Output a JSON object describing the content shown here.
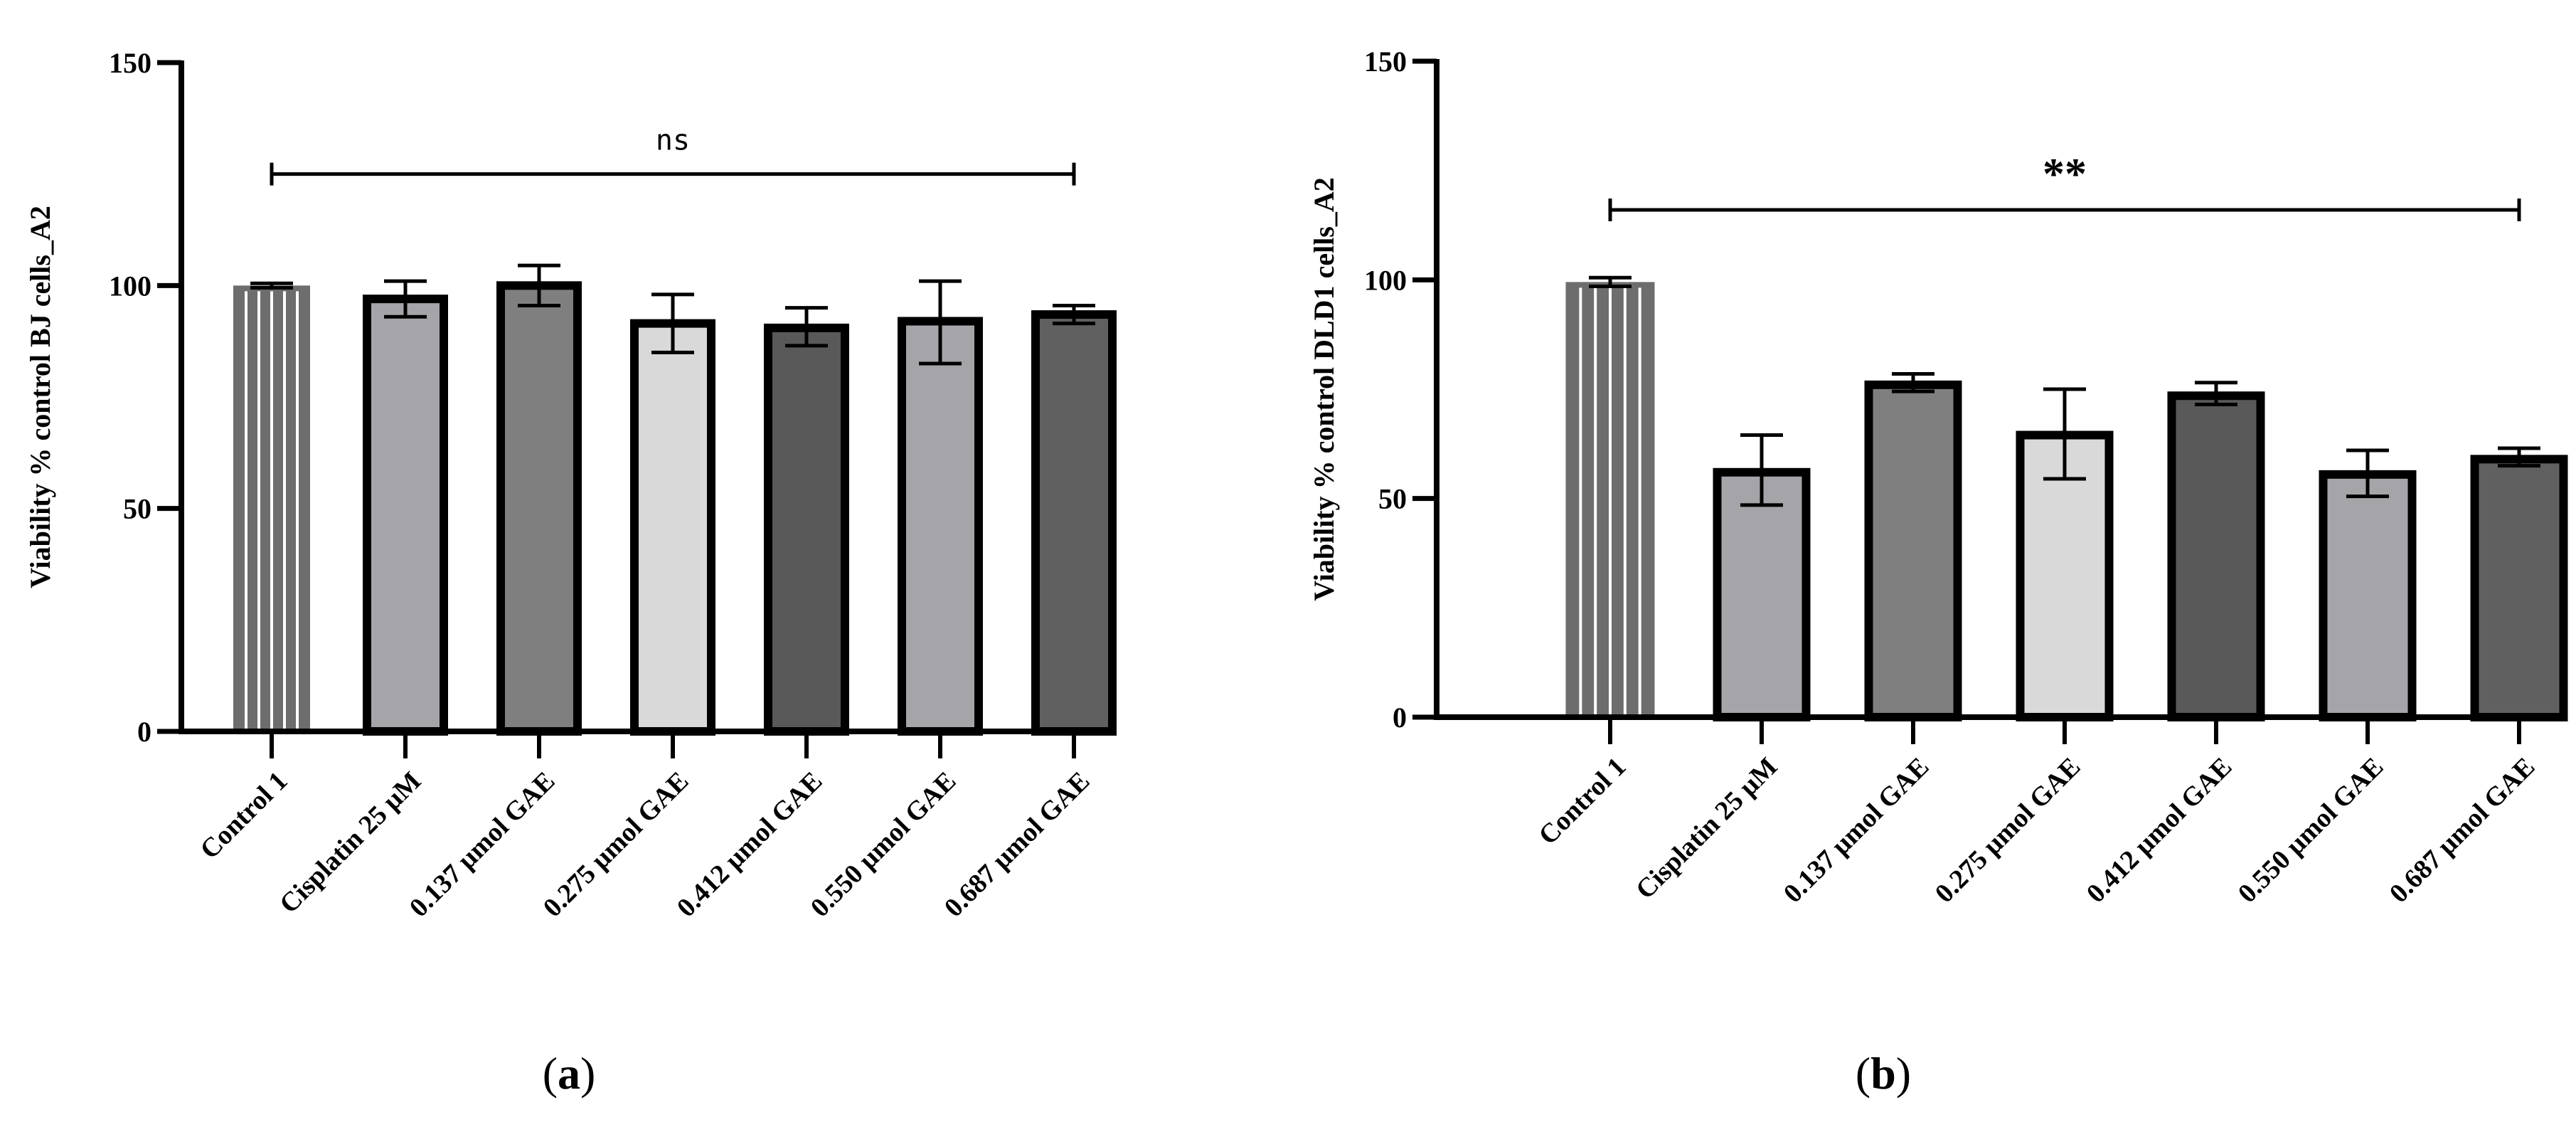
{
  "figure": {
    "panels": [
      {
        "paren_open": "(",
        "letter": "a",
        "paren_close": ")"
      },
      {
        "paren_open": "(",
        "letter": "b",
        "paren_close": ")"
      }
    ]
  },
  "chart_data": [
    {
      "type": "bar",
      "panel": "a",
      "title": "",
      "xlabel": "",
      "ylabel": "Viability % control BJ cells_A2",
      "ylim": [
        0,
        150
      ],
      "yticks": [
        "0",
        "50",
        "100",
        "150"
      ],
      "categories": [
        "Control 1",
        "Cisplatin 25 µM",
        "0.137 µmol GAE",
        "0.275 µmol GAE",
        "0.412 µmol GAE",
        "0.550 µmol GAE",
        "0.687 µmol GAE"
      ],
      "values": [
        100,
        97,
        100,
        91.5,
        90.5,
        92,
        93.5
      ],
      "error_low": [
        99.5,
        93,
        95.5,
        85,
        86.5,
        82.5,
        91.5
      ],
      "error_high": [
        100.5,
        101,
        104.5,
        98,
        95,
        101,
        95.5
      ],
      "colors": [
        "#6d6d6d",
        "#a5a5a9",
        "#7f7f7f",
        "#d9d9d9",
        "#595959",
        "#a5a5a9",
        "#606060"
      ],
      "significance": {
        "label": "ns",
        "from": 0,
        "to": 6,
        "y": 125
      }
    },
    {
      "type": "bar",
      "panel": "b",
      "title": "",
      "xlabel": "",
      "ylabel": "Viability % control DLD1 cells_A2",
      "ylim": [
        0,
        150
      ],
      "yticks": [
        "0",
        "50",
        "100",
        "150"
      ],
      "categories": [
        "Control 1",
        "Cisplatin 25 µM",
        "0.137 µmol GAE",
        "0.275 µmol GAE",
        "0.412 µmol GAE",
        "0.550 µmol GAE",
        "0.687 µmol GAE"
      ],
      "values": [
        99.5,
        56,
        76,
        64.5,
        73.5,
        55.5,
        59
      ],
      "error_low": [
        98.5,
        48.5,
        74.5,
        54.5,
        71.5,
        50.5,
        57.5
      ],
      "error_high": [
        100.5,
        64.5,
        78.5,
        75,
        76.5,
        61,
        61.5
      ],
      "colors": [
        "#6d6d6d",
        "#a5a5a9",
        "#7f7f7f",
        "#d9d9d9",
        "#595959",
        "#a5a5a9",
        "#606060"
      ],
      "significance": {
        "label": "**",
        "from": 0,
        "to": 6,
        "y": 116
      }
    }
  ]
}
